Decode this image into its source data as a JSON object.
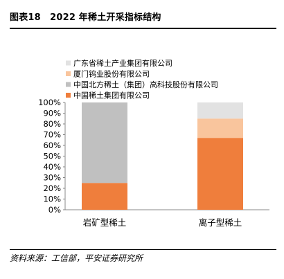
{
  "figure": {
    "title": "图表18　2022 年稀土开采指标结构"
  },
  "source": "资料来源：工信部，平安证券研究所",
  "colors": {
    "广东省稀土产业集团有限公司": "#e2e2e2",
    "厦门钨业股份有限公司": "#f9c59d",
    "中国北方稀土（集团）高科技股份有限公司": "#c0c0c0",
    "中国稀土集团有限公司": "#ef7e3c",
    "axis": "#888888"
  },
  "chart_data": {
    "type": "bar",
    "stacked": true,
    "categories": [
      "岩矿型稀土",
      "离子型稀土"
    ],
    "series": [
      {
        "name": "中国稀土集团有限公司",
        "values": [
          25,
          67
        ]
      },
      {
        "name": "中国北方稀土（集团）高科技股份有限公司",
        "values": [
          75,
          0
        ]
      },
      {
        "name": "厦门钨业股份有限公司",
        "values": [
          0,
          18
        ]
      },
      {
        "name": "广东省稀土产业集团有限公司",
        "values": [
          0,
          15
        ]
      }
    ],
    "legend_order": [
      "广东省稀土产业集团有限公司",
      "厦门钨业股份有限公司",
      "中国北方稀土（集团）高科技股份有限公司",
      "中国稀土集团有限公司"
    ],
    "y_ticks": [
      "0%",
      "10%",
      "20%",
      "30%",
      "40%",
      "50%",
      "60%",
      "70%",
      "80%",
      "90%",
      "100%"
    ],
    "ylim": [
      0,
      100
    ],
    "grid": false,
    "legend_position": "top-left",
    "title": "",
    "xlabel": "",
    "ylabel": ""
  }
}
